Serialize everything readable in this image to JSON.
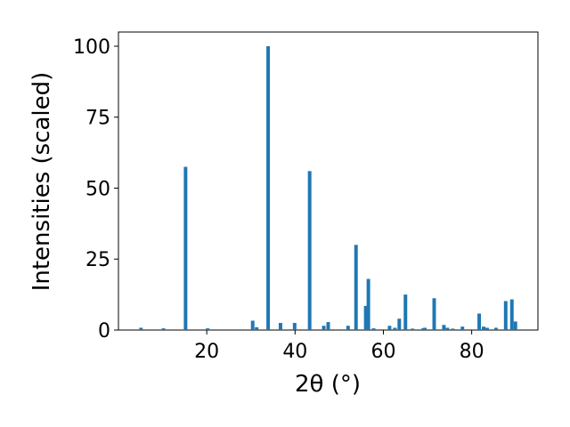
{
  "chart_data": {
    "type": "bar",
    "xlabel": "2θ (°)",
    "ylabel": "Intensities (scaled)",
    "x": [
      5.1,
      10.2,
      15.2,
      20.2,
      30.4,
      31.3,
      33.9,
      36.7,
      39.9,
      43.3,
      46.5,
      47.5,
      52.0,
      53.8,
      56.0,
      56.6,
      57.8,
      61.4,
      62.6,
      63.6,
      65.0,
      66.6,
      69.0,
      69.4,
      71.5,
      73.7,
      74.5,
      75.7,
      77.9,
      81.7,
      82.7,
      83.5,
      85.5,
      87.7,
      89.1,
      89.9
    ],
    "values": [
      0.8,
      0.6,
      57.5,
      0.6,
      3.3,
      1,
      100,
      2.5,
      2.5,
      56,
      1.5,
      2.8,
      1.5,
      30,
      8.5,
      18,
      0.6,
      1.5,
      0.8,
      4,
      12.5,
      0.5,
      0.6,
      0.8,
      11.2,
      1.8,
      0.8,
      0.5,
      1.2,
      5.8,
      1.2,
      0.8,
      0.8,
      10.2,
      10.8,
      3
    ],
    "bar_width": 0.8,
    "color": "#1f77b4",
    "xlim": [
      0,
      95
    ],
    "ylim": [
      0,
      105
    ],
    "xticks": [
      20,
      40,
      60,
      80
    ],
    "yticks": [
      0,
      25,
      50,
      75,
      100
    ]
  }
}
